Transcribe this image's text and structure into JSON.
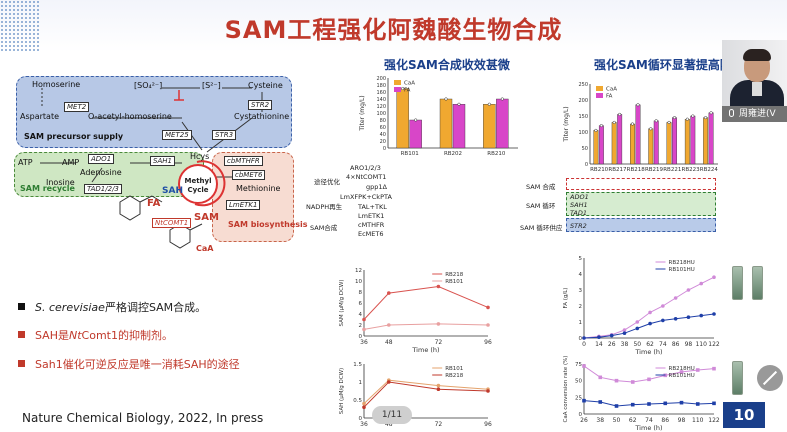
{
  "slide": {
    "title": "SAM工程强化阿魏酸生物合成",
    "page_number": "10",
    "page_indicator": "1/11",
    "citation": "Nature Chemical Biology, 2022, In press",
    "accent_color": "#c0392b",
    "title_color": "#c0392b",
    "panel_title_color": "#1a3f8a"
  },
  "pathway": {
    "homoserine": "Homoserine",
    "so4": "[SO₄²⁻]",
    "s2": "[S²⁻]",
    "cysteine": "Cysteine",
    "aspartate": "Aspartate",
    "met2": "MET2",
    "oacetyl": "O-acetyl-homoserine",
    "str2": "STR2",
    "cystathionine": "Cystathionine",
    "precursor_label": "SAM precursor supply",
    "met25": "MET25",
    "str3": "STR3",
    "atp": "ATP",
    "amp": "AMP",
    "ado1": "ADO1",
    "adenosine": "Adenosine",
    "hcys": "Hcys",
    "cbmthfr": "cbMTHFR",
    "inosine": "Inosine",
    "tad123": "TAD1/2/3",
    "sah1": "SAH1",
    "methyl_cycle": "Methyl Cycle",
    "cbmet6": "cbMET6",
    "methionine": "Methionine",
    "sam_recycle": "SAM recycle",
    "sah": "SAH",
    "fa": "FA",
    "sam": "SAM",
    "lmetk1": "LmETK1",
    "ntcomt1": "NtCOMT1",
    "sam_bio": "SAM biosynthesis",
    "caa": "CaA"
  },
  "bullets": [
    {
      "pre": "",
      "italic": "S. cerevisiae",
      "post": "严格调控SAM合成。",
      "color": "#111111"
    },
    {
      "pre": "SAH是",
      "italic": "Nt",
      "post": "Comt1的抑制剂。",
      "color": "#c0392b"
    },
    {
      "pre": "Sah1催化可逆反应是唯一消耗SAH的途径",
      "italic": "",
      "post": "",
      "color": "#c0392b"
    }
  ],
  "panel1": {
    "title": "强化SAM合成收效甚微",
    "legend": [
      "CaA",
      "FA"
    ],
    "series_colors": [
      "#f0a830",
      "#d846c8"
    ],
    "ylabel": "Titer (mg/L)",
    "pvalue": "P=0.67",
    "stars": [
      "***",
      "***"
    ],
    "rows": [
      "ARO1/2/3",
      "4×NtCOMT1",
      "gpp1Δ",
      "LmXFPK+CkPTA",
      "TAL+TKL",
      "LmETK1",
      "cMTHFR",
      "EcMET6"
    ],
    "group_labels": [
      "途径优化",
      "NADPH再生",
      "SAM合成"
    ]
  },
  "panel2": {
    "title": "强化SAM循环显著提高阿",
    "ylabel": "Titer (mg/L)",
    "legend": [
      "CaA",
      "FA"
    ],
    "rows": [
      "SAM 合成",
      "ADO1",
      "SAH1",
      "TAD1",
      "",
      "STR2"
    ],
    "group_labels": [
      "SAM 合成",
      "SAM 循环",
      "SAM 循环供应"
    ],
    "stars": "***"
  },
  "panel3": {
    "ylabel": "SAM (μM/g DCW)",
    "xlabel": "Time (h)",
    "legend": [
      "RB218",
      "RB101"
    ],
    "stars": [
      "***",
      "***",
      "**"
    ]
  },
  "panel4": {
    "ylabel": "SAH (μM/g DCW)",
    "legend": [
      "RB101",
      "RB218"
    ]
  },
  "panel5": {
    "ylabel": "FA (g/L)",
    "xlabel": "Time (h)",
    "legend": [
      "RB218HU",
      "RB101HU"
    ]
  },
  "panel6": {
    "ylabel": "CaA conversion rate (%)",
    "xlabel": "Time (h)",
    "legend": [
      "RB218HU",
      "RB101HU"
    ]
  },
  "chart_data": [
    {
      "type": "bar",
      "categories": [
        "RB101",
        "RB202",
        "RB210"
      ],
      "series": [
        {
          "name": "CaA",
          "values": [
            170,
            140,
            125
          ]
        },
        {
          "name": "FA",
          "values": [
            80,
            125,
            140
          ]
        }
      ],
      "ylabel": "Titer (mg/L)",
      "ylim": [
        0,
        200
      ],
      "yticks": [
        0,
        20,
        40,
        60,
        80,
        100,
        120,
        140,
        160,
        180,
        200
      ]
    },
    {
      "type": "bar",
      "categories": [
        "RB210",
        "RB217",
        "RB218",
        "RB219",
        "RB221",
        "RB223",
        "RB224"
      ],
      "series": [
        {
          "name": "CaA",
          "values": [
            105,
            130,
            125,
            110,
            130,
            140,
            145
          ]
        },
        {
          "name": "FA",
          "values": [
            120,
            155,
            185,
            135,
            145,
            150,
            160
          ]
        }
      ],
      "ylabel": "Titer (mg/L)",
      "ylim": [
        0,
        250
      ],
      "yticks": [
        0,
        50,
        100,
        150,
        200,
        250
      ]
    },
    {
      "type": "line",
      "x": [
        36,
        48,
        72,
        96
      ],
      "series": [
        {
          "name": "RB218",
          "values": [
            3,
            7.8,
            9,
            5.2
          ]
        },
        {
          "name": "RB101",
          "values": [
            1.2,
            2,
            2.2,
            2
          ]
        }
      ],
      "xlabel": "Time (h)",
      "ylabel": "SAM (μM/g DCW)",
      "ylim": [
        0,
        12
      ],
      "yticks": [
        0,
        2,
        4,
        6,
        8,
        10,
        12
      ]
    },
    {
      "type": "line",
      "x": [
        36,
        48,
        72,
        96
      ],
      "series": [
        {
          "name": "RB101",
          "values": [
            0.4,
            1.05,
            0.9,
            0.8
          ]
        },
        {
          "name": "RB218",
          "values": [
            0.3,
            1.0,
            0.8,
            0.75
          ]
        }
      ],
      "ylabel": "SAH (μM/g DCW)",
      "ylim": [
        0,
        1.5
      ],
      "yticks": [
        0,
        0.5,
        1,
        1.5
      ]
    },
    {
      "type": "line",
      "x": [
        0,
        14,
        26,
        38,
        50,
        62,
        74,
        86,
        98,
        110,
        122
      ],
      "series": [
        {
          "name": "RB218HU",
          "values": [
            0,
            0.1,
            0.2,
            0.5,
            1.0,
            1.6,
            2.0,
            2.5,
            3.0,
            3.4,
            3.8
          ]
        },
        {
          "name": "RB101HU",
          "values": [
            0,
            0.05,
            0.15,
            0.3,
            0.6,
            0.9,
            1.1,
            1.2,
            1.3,
            1.4,
            1.5
          ]
        }
      ],
      "xlabel": "Time (h)",
      "ylabel": "FA (g/L)",
      "ylim": [
        0,
        5
      ],
      "yticks": [
        0,
        1,
        2,
        3,
        4,
        5
      ]
    },
    {
      "type": "line",
      "x": [
        26,
        38,
        50,
        62,
        74,
        86,
        98,
        110,
        122
      ],
      "series": [
        {
          "name": "RB218HU",
          "values": [
            72,
            55,
            50,
            48,
            52,
            58,
            63,
            66,
            68
          ]
        },
        {
          "name": "RB101HU",
          "values": [
            20,
            18,
            12,
            14,
            15,
            16,
            17,
            15,
            16
          ]
        }
      ],
      "xlabel": "Time (h)",
      "ylabel": "CaA conversion rate (%)",
      "ylim": [
        0,
        75
      ],
      "yticks": [
        0,
        25,
        50,
        75
      ]
    }
  ],
  "video": {
    "name": "周雍进(V"
  }
}
